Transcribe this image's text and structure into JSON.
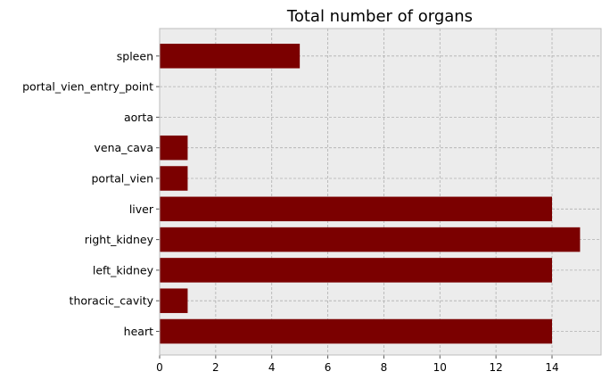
{
  "chart_data": {
    "type": "bar",
    "orientation": "horizontal",
    "title": "Total number of organs",
    "xlabel": "",
    "ylabel": "",
    "categories": [
      "heart",
      "thoracic_cavity",
      "left_kidney",
      "right_kidney",
      "liver",
      "portal_vien",
      "vena_cava",
      "aorta",
      "portal_vien_entry_point",
      "spleen"
    ],
    "values": [
      14,
      1,
      14,
      15,
      14,
      1,
      1,
      0,
      0,
      5
    ],
    "xlim": [
      0,
      15.75
    ],
    "xticks": [
      0,
      2,
      4,
      6,
      8,
      10,
      12,
      14
    ],
    "grid": true,
    "colors": {
      "bar": "#7b0000",
      "plot_background": "#ececec",
      "grid": "#b0b0b0",
      "frame": "#bcbcbc"
    }
  }
}
